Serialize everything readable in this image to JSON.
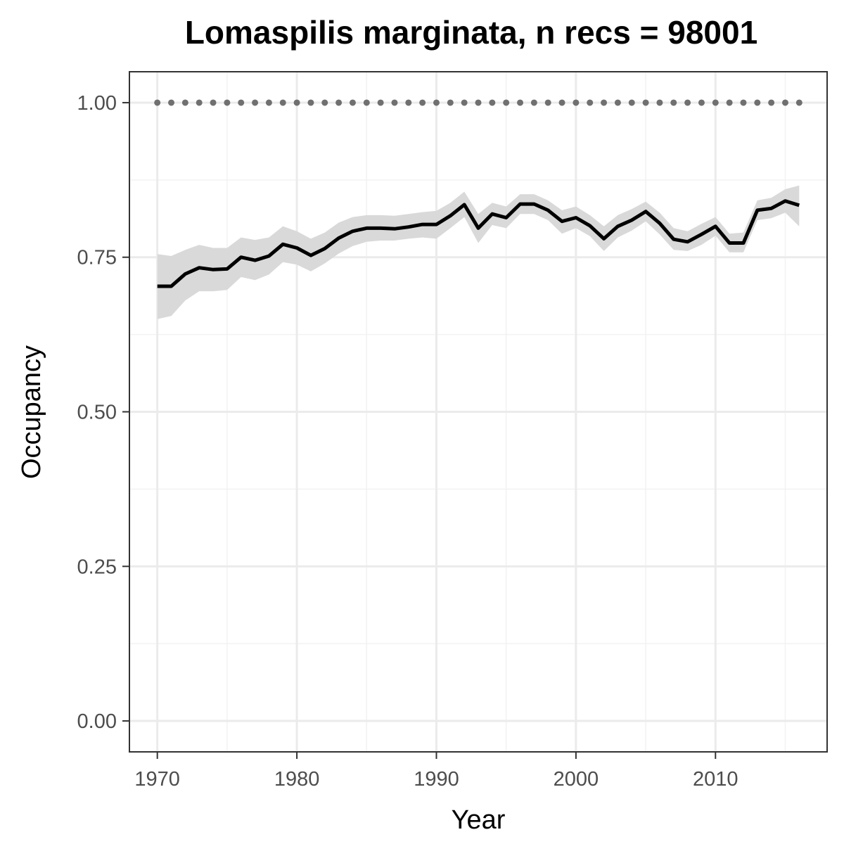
{
  "chart_data": {
    "type": "line",
    "title": "Lomaspilis marginata, n recs = 98001",
    "xlabel": "Year",
    "ylabel": "Occupancy",
    "xlim": [
      1968,
      2018
    ],
    "ylim": [
      -0.05,
      1.05
    ],
    "x_ticks": [
      "1970",
      "1980",
      "1990",
      "2000",
      "2010"
    ],
    "y_ticks": [
      "0.00",
      "0.25",
      "0.50",
      "0.75",
      "1.00"
    ],
    "grid": true,
    "legend": "none",
    "colors": {
      "line": "#000000",
      "ribbon": "#d9d9d9",
      "reference_points": "#707070",
      "grid_major": "#ebebeb",
      "grid_minor": "#f2f2f2",
      "panel_border": "#333333"
    },
    "x": [
      1970,
      1971,
      1972,
      1973,
      1974,
      1975,
      1976,
      1977,
      1978,
      1979,
      1980,
      1981,
      1982,
      1983,
      1984,
      1985,
      1986,
      1987,
      1988,
      1989,
      1990,
      1991,
      1992,
      1993,
      1994,
      1995,
      1996,
      1997,
      1998,
      1999,
      2000,
      2001,
      2002,
      2003,
      2004,
      2005,
      2006,
      2007,
      2008,
      2009,
      2010,
      2011,
      2012,
      2013,
      2014,
      2015,
      2016
    ],
    "series": [
      {
        "kind": "mean",
        "values": [
          0.703,
          0.703,
          0.723,
          0.733,
          0.73,
          0.731,
          0.75,
          0.745,
          0.752,
          0.771,
          0.765,
          0.753,
          0.764,
          0.781,
          0.792,
          0.797,
          0.797,
          0.796,
          0.799,
          0.803,
          0.803,
          0.817,
          0.835,
          0.797,
          0.82,
          0.814,
          0.836,
          0.836,
          0.826,
          0.808,
          0.814,
          0.801,
          0.78,
          0.8,
          0.81,
          0.824,
          0.805,
          0.779,
          0.775,
          0.787,
          0.8,
          0.773,
          0.773,
          0.826,
          0.829,
          0.841,
          0.834
        ],
        "lower": [
          0.65,
          0.655,
          0.68,
          0.695,
          0.695,
          0.697,
          0.718,
          0.713,
          0.722,
          0.742,
          0.738,
          0.727,
          0.74,
          0.756,
          0.768,
          0.775,
          0.777,
          0.777,
          0.78,
          0.782,
          0.78,
          0.797,
          0.815,
          0.773,
          0.802,
          0.797,
          0.82,
          0.82,
          0.81,
          0.788,
          0.797,
          0.784,
          0.76,
          0.782,
          0.793,
          0.808,
          0.787,
          0.762,
          0.76,
          0.77,
          0.785,
          0.758,
          0.758,
          0.81,
          0.813,
          0.822,
          0.8
        ],
        "upper": [
          0.755,
          0.752,
          0.762,
          0.77,
          0.765,
          0.765,
          0.782,
          0.778,
          0.782,
          0.8,
          0.792,
          0.78,
          0.79,
          0.806,
          0.815,
          0.818,
          0.818,
          0.817,
          0.82,
          0.823,
          0.825,
          0.838,
          0.856,
          0.82,
          0.838,
          0.832,
          0.852,
          0.852,
          0.842,
          0.826,
          0.832,
          0.818,
          0.8,
          0.818,
          0.828,
          0.84,
          0.822,
          0.797,
          0.792,
          0.804,
          0.815,
          0.788,
          0.79,
          0.842,
          0.846,
          0.86,
          0.866
        ]
      },
      {
        "kind": "reference",
        "values": [
          1,
          1,
          1,
          1,
          1,
          1,
          1,
          1,
          1,
          1,
          1,
          1,
          1,
          1,
          1,
          1,
          1,
          1,
          1,
          1,
          1,
          1,
          1,
          1,
          1,
          1,
          1,
          1,
          1,
          1,
          1,
          1,
          1,
          1,
          1,
          1,
          1,
          1,
          1,
          1,
          1,
          1,
          1,
          1,
          1,
          1,
          1
        ]
      }
    ]
  }
}
